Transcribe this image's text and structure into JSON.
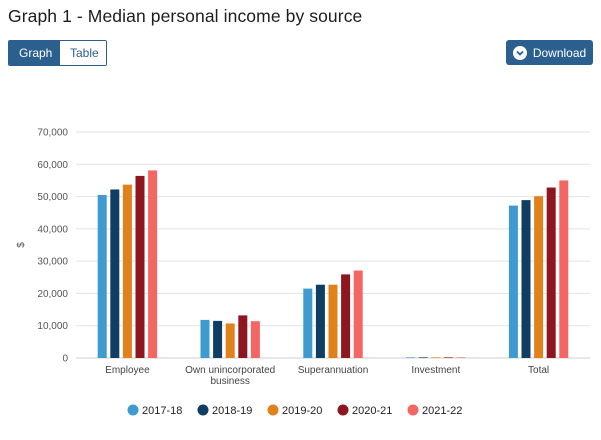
{
  "header": {
    "title": "Graph 1 - Median personal income by source"
  },
  "view_toggle": {
    "graph_label": "Graph",
    "table_label": "Table",
    "selected": "Graph"
  },
  "toolbar": {
    "download_label": "Download"
  },
  "colors": {
    "accent": "#2b5f8e",
    "series": [
      "#3d9bd0",
      "#0f3d63",
      "#e1811c",
      "#8d1620",
      "#f46663"
    ]
  },
  "chart_data": {
    "type": "bar",
    "title": "Graph 1 - Median personal income by source",
    "xlabel": "",
    "ylabel": "$",
    "ylim": [
      0,
      70000
    ],
    "yticks": [
      0,
      10000,
      20000,
      30000,
      40000,
      50000,
      60000,
      70000
    ],
    "ytick_labels": [
      "0",
      "10,000",
      "20,000",
      "30,000",
      "40,000",
      "50,000",
      "60,000",
      "70,000"
    ],
    "grid": true,
    "legend_position": "bottom",
    "categories": [
      [
        "Employee"
      ],
      [
        "Own unincorporated",
        "business"
      ],
      [
        "Superannuation"
      ],
      [
        "Investment"
      ],
      [
        "Total"
      ]
    ],
    "series": [
      {
        "name": "2017-18",
        "values": [
          50500,
          11800,
          21500,
          200,
          47200
        ]
      },
      {
        "name": "2018-19",
        "values": [
          52200,
          11500,
          22700,
          200,
          48900
        ]
      },
      {
        "name": "2019-20",
        "values": [
          53700,
          10700,
          22700,
          200,
          50100
        ]
      },
      {
        "name": "2020-21",
        "values": [
          56400,
          13200,
          25900,
          200,
          52800
        ]
      },
      {
        "name": "2021-22",
        "values": [
          58100,
          11400,
          27100,
          200,
          55000
        ]
      }
    ]
  }
}
